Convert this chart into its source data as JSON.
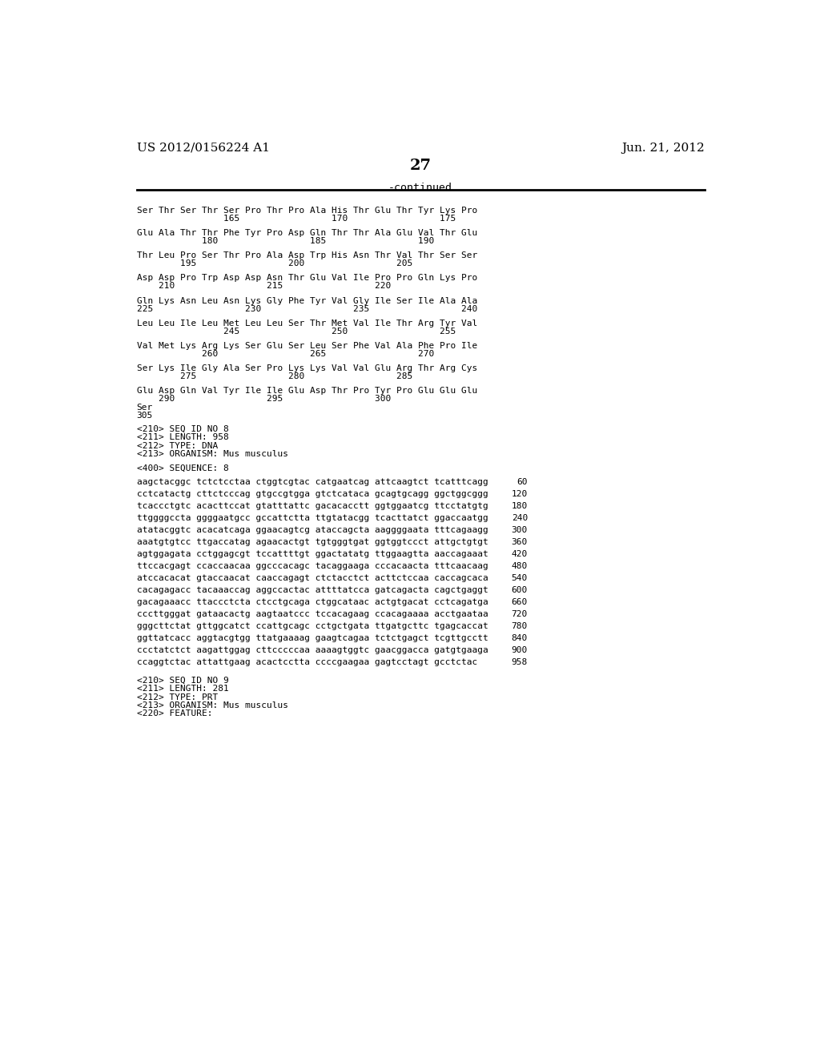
{
  "header_left": "US 2012/0156224 A1",
  "header_right": "Jun. 21, 2012",
  "page_number": "27",
  "continued_label": "-continued",
  "background_color": "#ffffff",
  "text_color": "#000000",
  "mono_font_size": 8.0,
  "header_font_size": 11,
  "page_num_font_size": 14,
  "content_blocks": [
    {
      "seq": "Ser Thr Ser Thr Ser Pro Thr Pro Ala His Thr Glu Thr Tyr Lys Pro",
      "num": "                165                 170                 175"
    },
    {
      "seq": "Glu Ala Thr Thr Phe Tyr Pro Asp Gln Thr Thr Ala Glu Val Thr Glu",
      "num": "            180                 185                 190"
    },
    {
      "seq": "Thr Leu Pro Ser Thr Pro Ala Asp Trp His Asn Thr Val Thr Ser Ser",
      "num": "        195                 200                 205"
    },
    {
      "seq": "Asp Asp Pro Trp Asp Asp Asn Thr Glu Val Ile Pro Pro Gln Lys Pro",
      "num": "    210                 215                 220"
    },
    {
      "seq": "Gln Lys Asn Leu Asn Lys Gly Phe Tyr Val Gly Ile Ser Ile Ala Ala",
      "num": "225                 230                 235                 240"
    },
    {
      "seq": "Leu Leu Ile Leu Met Leu Leu Ser Thr Met Val Ile Thr Arg Tyr Val",
      "num": "                245                 250                 255"
    },
    {
      "seq": "Val Met Lys Arg Lys Ser Glu Ser Leu Ser Phe Val Ala Phe Pro Ile",
      "num": "            260                 265                 270"
    },
    {
      "seq": "Ser Lys Ile Gly Ala Ser Pro Lys Lys Val Val Glu Arg Thr Arg Cys",
      "num": "        275                 280                 285"
    },
    {
      "seq": "Glu Asp Gln Val Tyr Ile Ile Glu Asp Thr Pro Tyr Pro Glu Glu Glu",
      "num": "    290                 295                 300"
    }
  ],
  "final_lines": [
    "Ser",
    "305"
  ],
  "metadata_lines": [
    "<210> SEQ ID NO 8",
    "<211> LENGTH: 958",
    "<212> TYPE: DNA",
    "<213> ORGANISM: Mus musculus",
    "",
    "<400> SEQUENCE: 8"
  ],
  "sequence_lines": [
    [
      "aagctacggc tctctcctaa ctggtcgtac catgaatcag attcaagtct tcatttcagg",
      "60"
    ],
    [
      "cctcatactg cttctcccag gtgccgtgga gtctcataca gcagtgcagg ggctggcggg",
      "120"
    ],
    [
      "tcaccctgtc acacttccat gtatttattc gacacacctt ggtggaatcg ttcctatgtg",
      "180"
    ],
    [
      "ttggggccta ggggaatgcc gccattctta ttgtatacgg tcacttatct ggaccaatgg",
      "240"
    ],
    [
      "atatacggtc acacatcaga ggaacagtcg ataccagcta aaggggaata tttcagaagg",
      "300"
    ],
    [
      "aaatgtgtcc ttgaccatag agaacactgt tgtgggtgat ggtggtccct attgctgtgt",
      "360"
    ],
    [
      "agtggagata cctggagcgt tccattttgt ggactatatg ttggaagtta aaccagaaat",
      "420"
    ],
    [
      "ttccacgagt ccaccaacaa ggcccacagc tacaggaaga cccacaacta tttcaacaag",
      "480"
    ],
    [
      "atccacacat gtaccaacat caaccagagt ctctacctct acttctccaa caccagcaca",
      "540"
    ],
    [
      "cacagagacc tacaaaccag aggccactac attttatcca gatcagacta cagctgaggt",
      "600"
    ],
    [
      "gacagaaacc ttaccctcta ctcctgcaga ctggcataac actgtgacat cctcagatga",
      "660"
    ],
    [
      "cccttgggat gataacactg aagtaatccc tccacagaag ccacagaaaa acctgaataa",
      "720"
    ],
    [
      "gggcttctat gttggcatct ccattgcagc cctgctgata ttgatgcttc tgagcaccat",
      "780"
    ],
    [
      "ggttatcacc aggtacgtgg ttatgaaaag gaagtcagaa tctctgagct tcgttgcctt",
      "840"
    ],
    [
      "ccctatctct aagattggag cttcccccaa aaaagtggtc gaacggacca gatgtgaaga",
      "900"
    ],
    [
      "ccaggtctac attattgaag acactcctta ccccgaagaa gagtcctagt gcctctac",
      "958"
    ]
  ],
  "footer_lines": [
    "<210> SEQ ID NO 9",
    "<211> LENGTH: 281",
    "<212> TYPE: PRT",
    "<213> ORGANISM: Mus musculus",
    "<220> FEATURE:"
  ]
}
